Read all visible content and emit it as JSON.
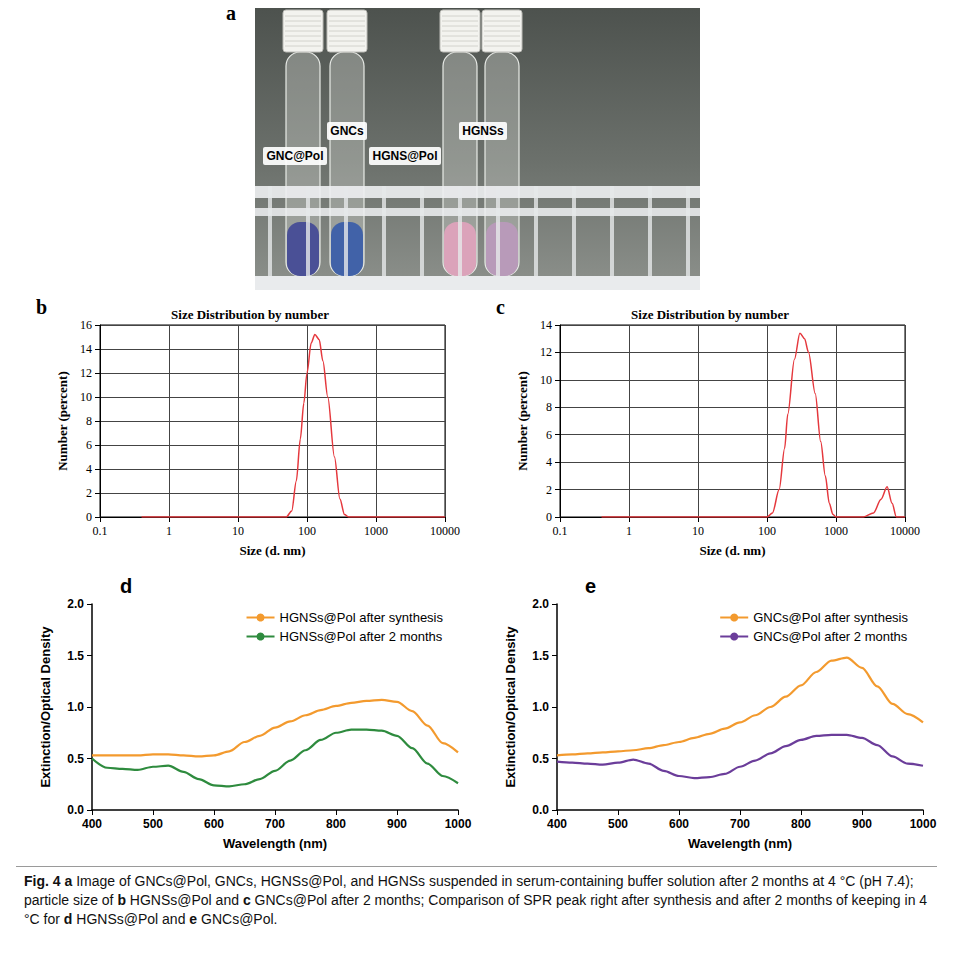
{
  "photo": {
    "panel": "a",
    "tubes": [
      {
        "label": "GNC@Pol",
        "color": "#4a5096"
      },
      {
        "label": "GNCs",
        "color": "#4162a8"
      },
      {
        "label": "HGNS@Pol",
        "color": "#dba3ba"
      },
      {
        "label": "HGNSs",
        "color": "#b89ab9"
      }
    ]
  },
  "chart_data": [
    {
      "type": "line",
      "panel": "b",
      "title": "Size Distribution by number",
      "xlabel": "Size (d. nm)",
      "ylabel": "Number (percent)",
      "log": "x",
      "grid": true,
      "xlim": [
        0.1,
        10000
      ],
      "xticks": [
        0.1,
        1,
        10,
        100,
        1000,
        10000
      ],
      "ylim": [
        0,
        16
      ],
      "yticks": [
        0,
        2,
        4,
        6,
        8,
        10,
        12,
        14,
        16
      ],
      "x": [
        0.4,
        1,
        10,
        50,
        60,
        70,
        80,
        90,
        100,
        115,
        130,
        150,
        170,
        200,
        250,
        300,
        350,
        400,
        1000,
        10000
      ],
      "series": [
        {
          "color": "#e5383d",
          "values": [
            0,
            0,
            0,
            0,
            0.5,
            3,
            6.5,
            9.5,
            12,
            14.5,
            15.2,
            14.8,
            13,
            10,
            5,
            1.5,
            0.2,
            0,
            0,
            0
          ]
        }
      ]
    },
    {
      "type": "line",
      "panel": "c",
      "title": "Size Distribution by number",
      "xlabel": "Size (d. nm)",
      "ylabel": "Number (percent)",
      "log": "x",
      "grid": true,
      "xlim": [
        0.1,
        10000
      ],
      "xticks": [
        0.1,
        1,
        10,
        100,
        1000,
        10000
      ],
      "ylim": [
        0,
        14
      ],
      "yticks": [
        0,
        2,
        4,
        6,
        8,
        10,
        12,
        14
      ],
      "x": [
        0.4,
        10,
        100,
        120,
        150,
        180,
        200,
        250,
        300,
        350,
        400,
        500,
        600,
        700,
        800,
        900,
        1000,
        2500,
        3500,
        4500,
        5500,
        6500,
        7500,
        10000
      ],
      "series": [
        {
          "color": "#e5383d",
          "values": [
            0,
            0,
            0,
            0.3,
            2,
            5,
            7.5,
            11.5,
            13.4,
            13,
            12,
            9,
            5.5,
            3,
            1,
            0.2,
            0,
            0,
            0.3,
            1.3,
            2.2,
            1,
            0,
            0
          ]
        }
      ]
    },
    {
      "type": "line",
      "panel": "d",
      "xlabel": "Wavelength (nm)",
      "ylabel": "Extinction/Optical Density",
      "grid": false,
      "legend": "upper right",
      "xlim": [
        400,
        1000
      ],
      "xticks": [
        400,
        500,
        600,
        700,
        800,
        900,
        1000
      ],
      "ylim": [
        0,
        2
      ],
      "yticks": [
        {
          "value": 0,
          "label": "0.0"
        },
        0.5,
        {
          "value": 1,
          "label": "1.0"
        },
        1.5,
        {
          "value": 2,
          "label": "2.0"
        }
      ],
      "x": [
        400,
        425,
        450,
        475,
        500,
        525,
        550,
        575,
        600,
        625,
        650,
        675,
        700,
        725,
        750,
        775,
        800,
        825,
        850,
        875,
        900,
        925,
        950,
        975,
        1000
      ],
      "series": [
        {
          "name": "HGNSs@Pol after synthesis",
          "color": "#f39a2e",
          "values": [
            0.53,
            0.53,
            0.53,
            0.53,
            0.54,
            0.54,
            0.53,
            0.52,
            0.53,
            0.57,
            0.66,
            0.72,
            0.8,
            0.86,
            0.92,
            0.97,
            1.01,
            1.04,
            1.06,
            1.07,
            1.05,
            0.96,
            0.82,
            0.65,
            0.56
          ]
        },
        {
          "name": "HGNSs@Pol after 2 months",
          "color": "#2e8b3e",
          "values": [
            0.5,
            0.41,
            0.4,
            0.39,
            0.42,
            0.43,
            0.37,
            0.3,
            0.24,
            0.23,
            0.25,
            0.3,
            0.38,
            0.48,
            0.58,
            0.68,
            0.75,
            0.78,
            0.78,
            0.77,
            0.72,
            0.6,
            0.45,
            0.33,
            0.26
          ]
        }
      ]
    },
    {
      "type": "line",
      "panel": "e",
      "xlabel": "Wavelength (nm)",
      "ylabel": "Extinction/Optical Density",
      "grid": false,
      "legend": "upper right",
      "xlim": [
        400,
        1000
      ],
      "xticks": [
        400,
        500,
        600,
        700,
        800,
        900,
        1000
      ],
      "ylim": [
        0,
        2
      ],
      "yticks": [
        {
          "value": 0,
          "label": "0.0"
        },
        0.5,
        {
          "value": 1,
          "label": "1.0"
        },
        1.5,
        {
          "value": 2,
          "label": "2.0"
        }
      ],
      "x": [
        400,
        425,
        450,
        475,
        500,
        525,
        550,
        575,
        600,
        625,
        650,
        675,
        700,
        725,
        750,
        775,
        800,
        825,
        850,
        875,
        900,
        925,
        950,
        975,
        1000
      ],
      "series": [
        {
          "name": "GNCs@Pol after synthesis",
          "color": "#f39a2e",
          "values": [
            0.53,
            0.54,
            0.55,
            0.56,
            0.57,
            0.58,
            0.6,
            0.63,
            0.66,
            0.7,
            0.74,
            0.79,
            0.85,
            0.92,
            1.0,
            1.1,
            1.21,
            1.34,
            1.45,
            1.48,
            1.38,
            1.2,
            1.03,
            0.93,
            0.85
          ]
        },
        {
          "name": "GNCs@Pol after 2 months",
          "color": "#6b3d9a",
          "values": [
            0.47,
            0.46,
            0.45,
            0.44,
            0.46,
            0.49,
            0.45,
            0.38,
            0.33,
            0.31,
            0.32,
            0.35,
            0.42,
            0.48,
            0.55,
            0.62,
            0.68,
            0.72,
            0.73,
            0.73,
            0.7,
            0.63,
            0.52,
            0.45,
            0.43
          ]
        }
      ]
    }
  ],
  "caption": {
    "label": "Fig. 4",
    "parts": [
      {
        "panel": "a",
        "text": "Image of GNCs@Pol, GNCs, HGNSs@Pol, and HGNSs suspended in serum-containing buffer solution after 2 months at 4 °C (pH 7.4); particle size of"
      },
      {
        "panel": "b",
        "text": "HGNSs@Pol and"
      },
      {
        "panel": "c",
        "text": "GNCs@Pol after 2 months; Comparison of SPR peak right after synthesis and after 2 months of keeping in 4 °C for"
      },
      {
        "panel": "d",
        "text": "HGNSs@Pol and"
      },
      {
        "panel": "e",
        "text": "GNCs@Pol."
      }
    ]
  }
}
